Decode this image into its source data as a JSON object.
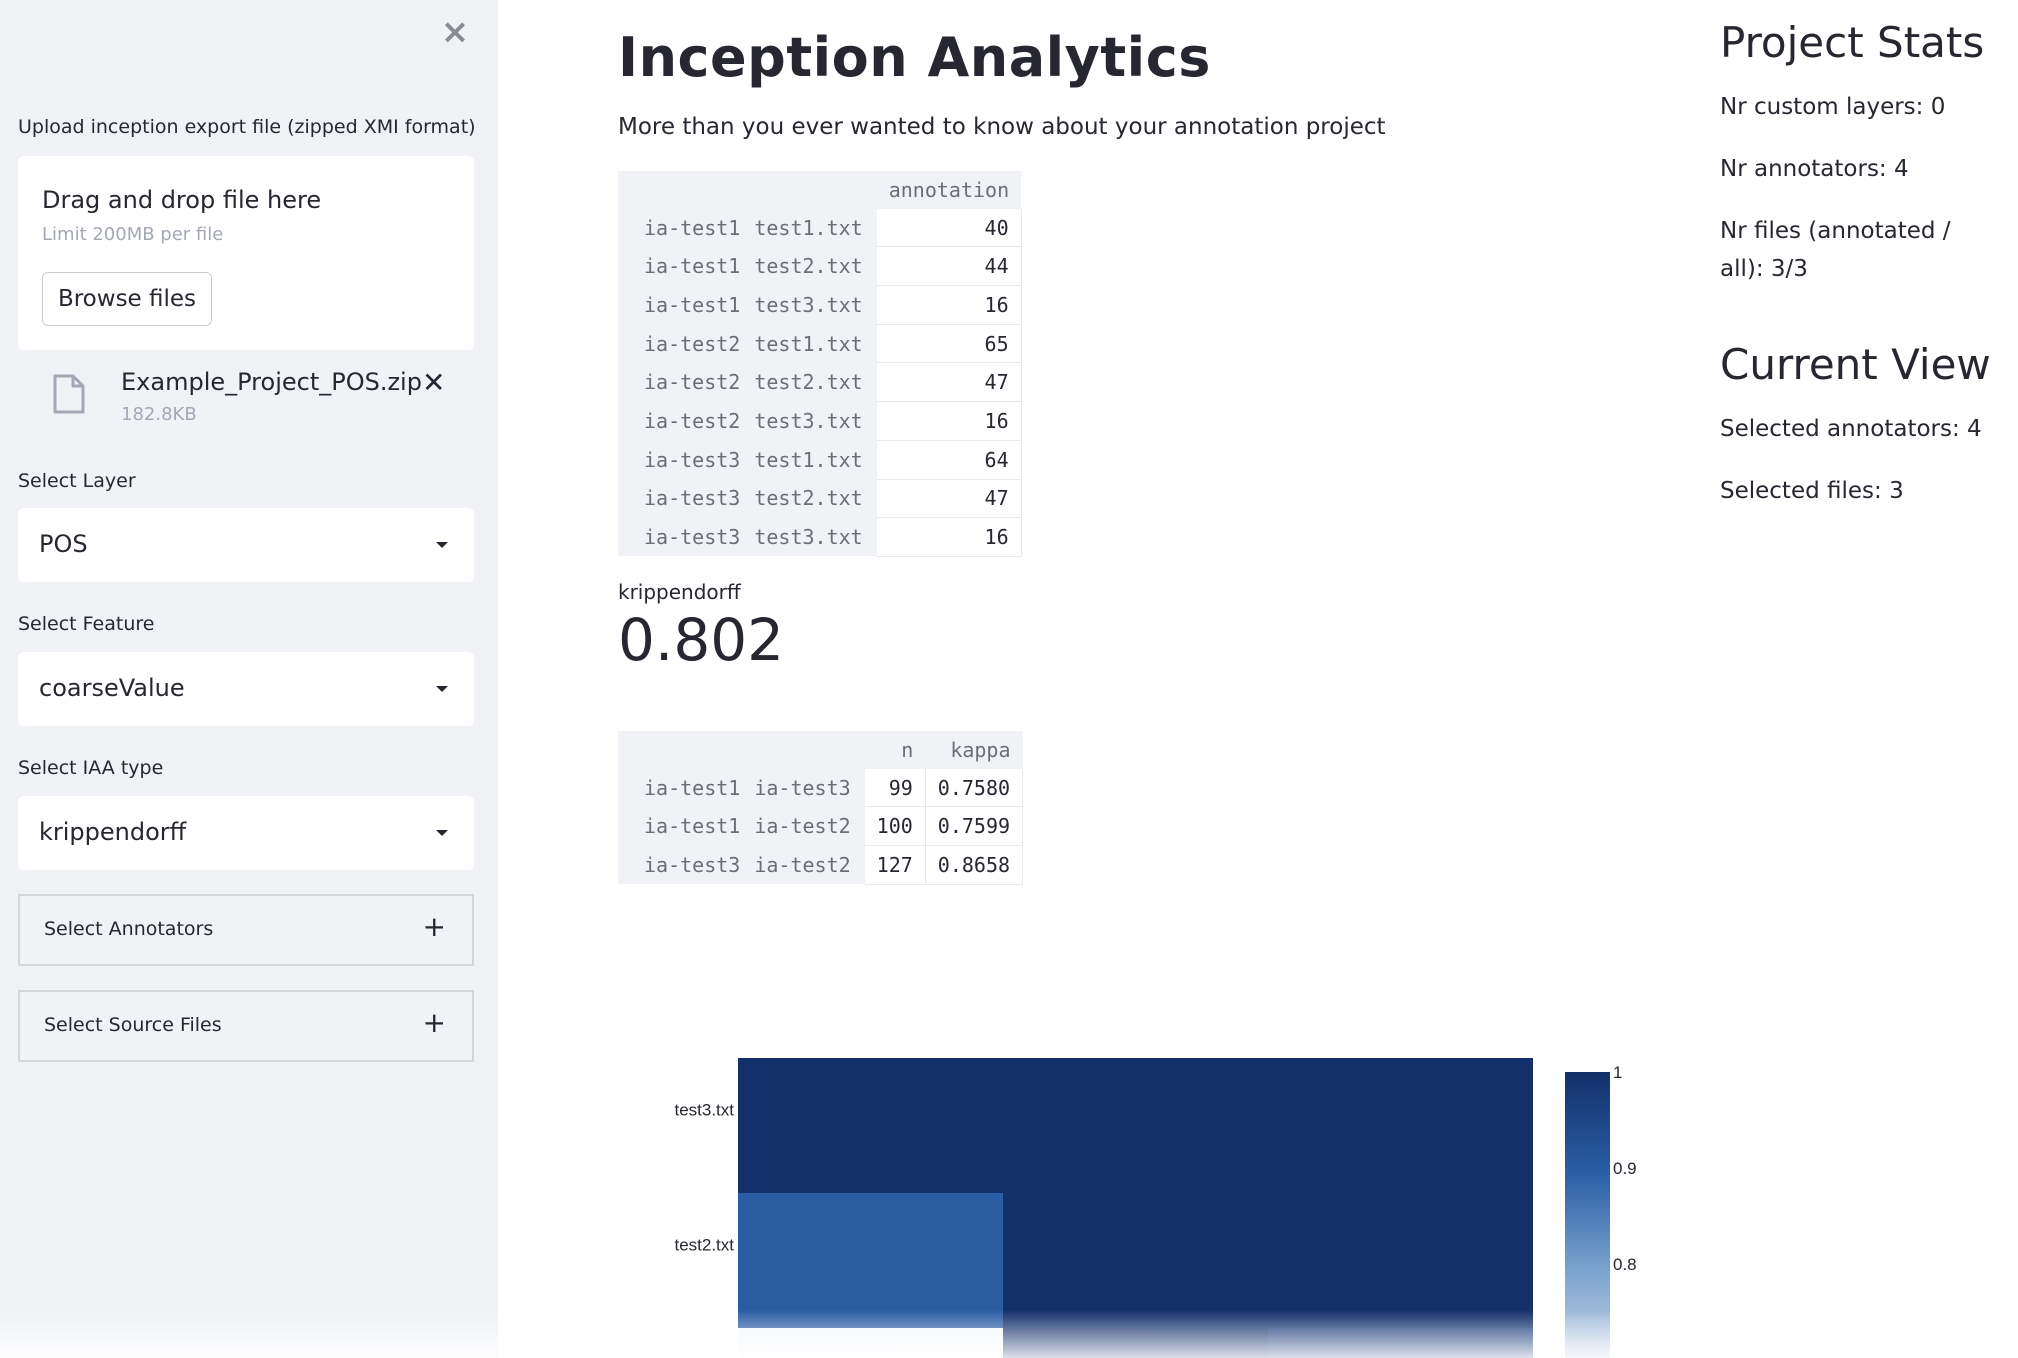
{
  "sidebar": {
    "upload_label": "Upload inception export file (zipped XMI format)",
    "dropzone_title": "Drag and drop file here",
    "dropzone_limit": "Limit 200MB per file",
    "browse_label": "Browse files",
    "file": {
      "name": "Example_Project_POS.zip",
      "size": "182.8KB"
    },
    "layer": {
      "label": "Select Layer",
      "value": "POS"
    },
    "feature": {
      "label": "Select Feature",
      "value": "coarseValue"
    },
    "iaa": {
      "label": "Select IAA type",
      "value": "krippendorff"
    },
    "annotators_label": "Select Annotators",
    "source_files_label": "Select Source Files"
  },
  "main": {
    "title": "Inception Analytics",
    "subtitle": "More than you ever wanted to know about your annotation project",
    "annotation_table": {
      "column": "annotation",
      "rows": [
        {
          "annotator": "ia-test1",
          "file": "test1.txt",
          "value": "40"
        },
        {
          "annotator": "ia-test1",
          "file": "test2.txt",
          "value": "44"
        },
        {
          "annotator": "ia-test1",
          "file": "test3.txt",
          "value": "16"
        },
        {
          "annotator": "ia-test2",
          "file": "test1.txt",
          "value": "65"
        },
        {
          "annotator": "ia-test2",
          "file": "test2.txt",
          "value": "47"
        },
        {
          "annotator": "ia-test2",
          "file": "test3.txt",
          "value": "16"
        },
        {
          "annotator": "ia-test3",
          "file": "test1.txt",
          "value": "64"
        },
        {
          "annotator": "ia-test3",
          "file": "test2.txt",
          "value": "47"
        },
        {
          "annotator": "ia-test3",
          "file": "test3.txt",
          "value": "16"
        }
      ]
    },
    "metric": {
      "label": "krippendorff",
      "value": "0.802"
    },
    "kappa_table": {
      "columns": [
        "n",
        "kappa"
      ],
      "rows": [
        {
          "a": "ia-test1",
          "b": "ia-test3",
          "n": "99",
          "kappa": "0.7580"
        },
        {
          "a": "ia-test1",
          "b": "ia-test2",
          "n": "100",
          "kappa": "0.7599"
        },
        {
          "a": "ia-test3",
          "b": "ia-test2",
          "n": "127",
          "kappa": "0.8658"
        }
      ]
    }
  },
  "right": {
    "stats_title": "Project Stats",
    "custom_layers": "Nr custom layers: 0",
    "annotators": "Nr annotators: 4",
    "files_line1": "Nr files (annotated /",
    "files_line2": "all): 3/3",
    "view_title": "Current View",
    "selected_annotators": "Selected annotators: 4",
    "selected_files": "Selected files: 3"
  },
  "chart_data": {
    "type": "heatmap",
    "y_categories": [
      "test3.txt",
      "test2.txt"
    ],
    "cells": [
      {
        "row": "test3.txt",
        "col": 0,
        "value": 1.0
      },
      {
        "row": "test3.txt",
        "col": 1,
        "value": 1.0
      },
      {
        "row": "test3.txt",
        "col": 2,
        "value": 1.0
      },
      {
        "row": "test2.txt",
        "col": 0,
        "value": 0.9
      },
      {
        "row": "test2.txt",
        "col": 1,
        "value": 1.0
      },
      {
        "row": "test2.txt",
        "col": 2,
        "value": 1.0
      }
    ],
    "colorbar": {
      "ticks": [
        "1",
        "0.9",
        "0.8"
      ],
      "range": [
        0.7,
        1.0
      ],
      "colors": [
        "#c6d3e6",
        "#13306a"
      ]
    }
  }
}
